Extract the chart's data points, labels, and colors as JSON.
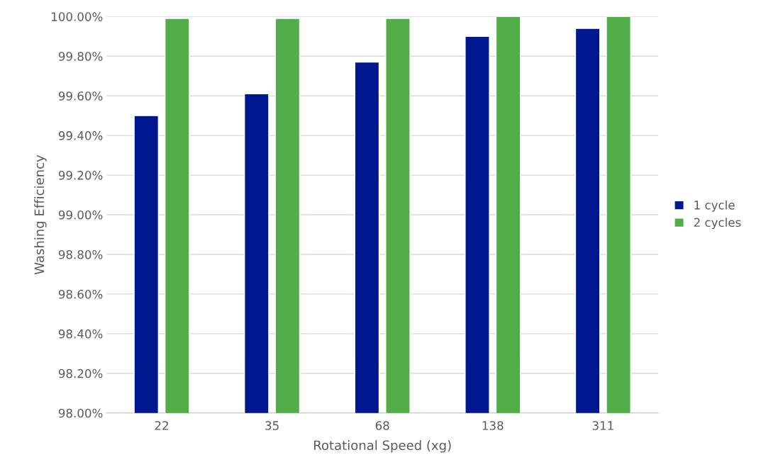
{
  "chart_data": {
    "type": "bar",
    "xlabel": "Rotational Speed (xg)",
    "ylabel": "Washing Efficiency",
    "categories": [
      "22",
      "35",
      "68",
      "138",
      "311"
    ],
    "series": [
      {
        "name": "1 cycle",
        "color": "#00188f",
        "values": [
          99.5,
          99.61,
          99.77,
          99.9,
          99.94
        ]
      },
      {
        "name": "2 cycles",
        "color": "#50ad48",
        "values": [
          99.99,
          99.99,
          99.99,
          100.0,
          100.0
        ]
      }
    ],
    "ylim": [
      98,
      100
    ],
    "yticks": [
      {
        "value": 98,
        "label": "98.00%"
      },
      {
        "value": 98.2,
        "label": "98.20%"
      },
      {
        "value": 98.4,
        "label": "98.40%"
      },
      {
        "value": 98.6,
        "label": "98.60%"
      },
      {
        "value": 98.8,
        "label": "98.80%"
      },
      {
        "value": 99,
        "label": "99.00%"
      },
      {
        "value": 99.2,
        "label": "99.20%"
      },
      {
        "value": 99.4,
        "label": "99.40%"
      },
      {
        "value": 99.6,
        "label": "99.60%"
      },
      {
        "value": 99.8,
        "label": "99.80%"
      },
      {
        "value": 100,
        "label": "100.00%"
      }
    ],
    "grid": "y",
    "legend": "right"
  }
}
